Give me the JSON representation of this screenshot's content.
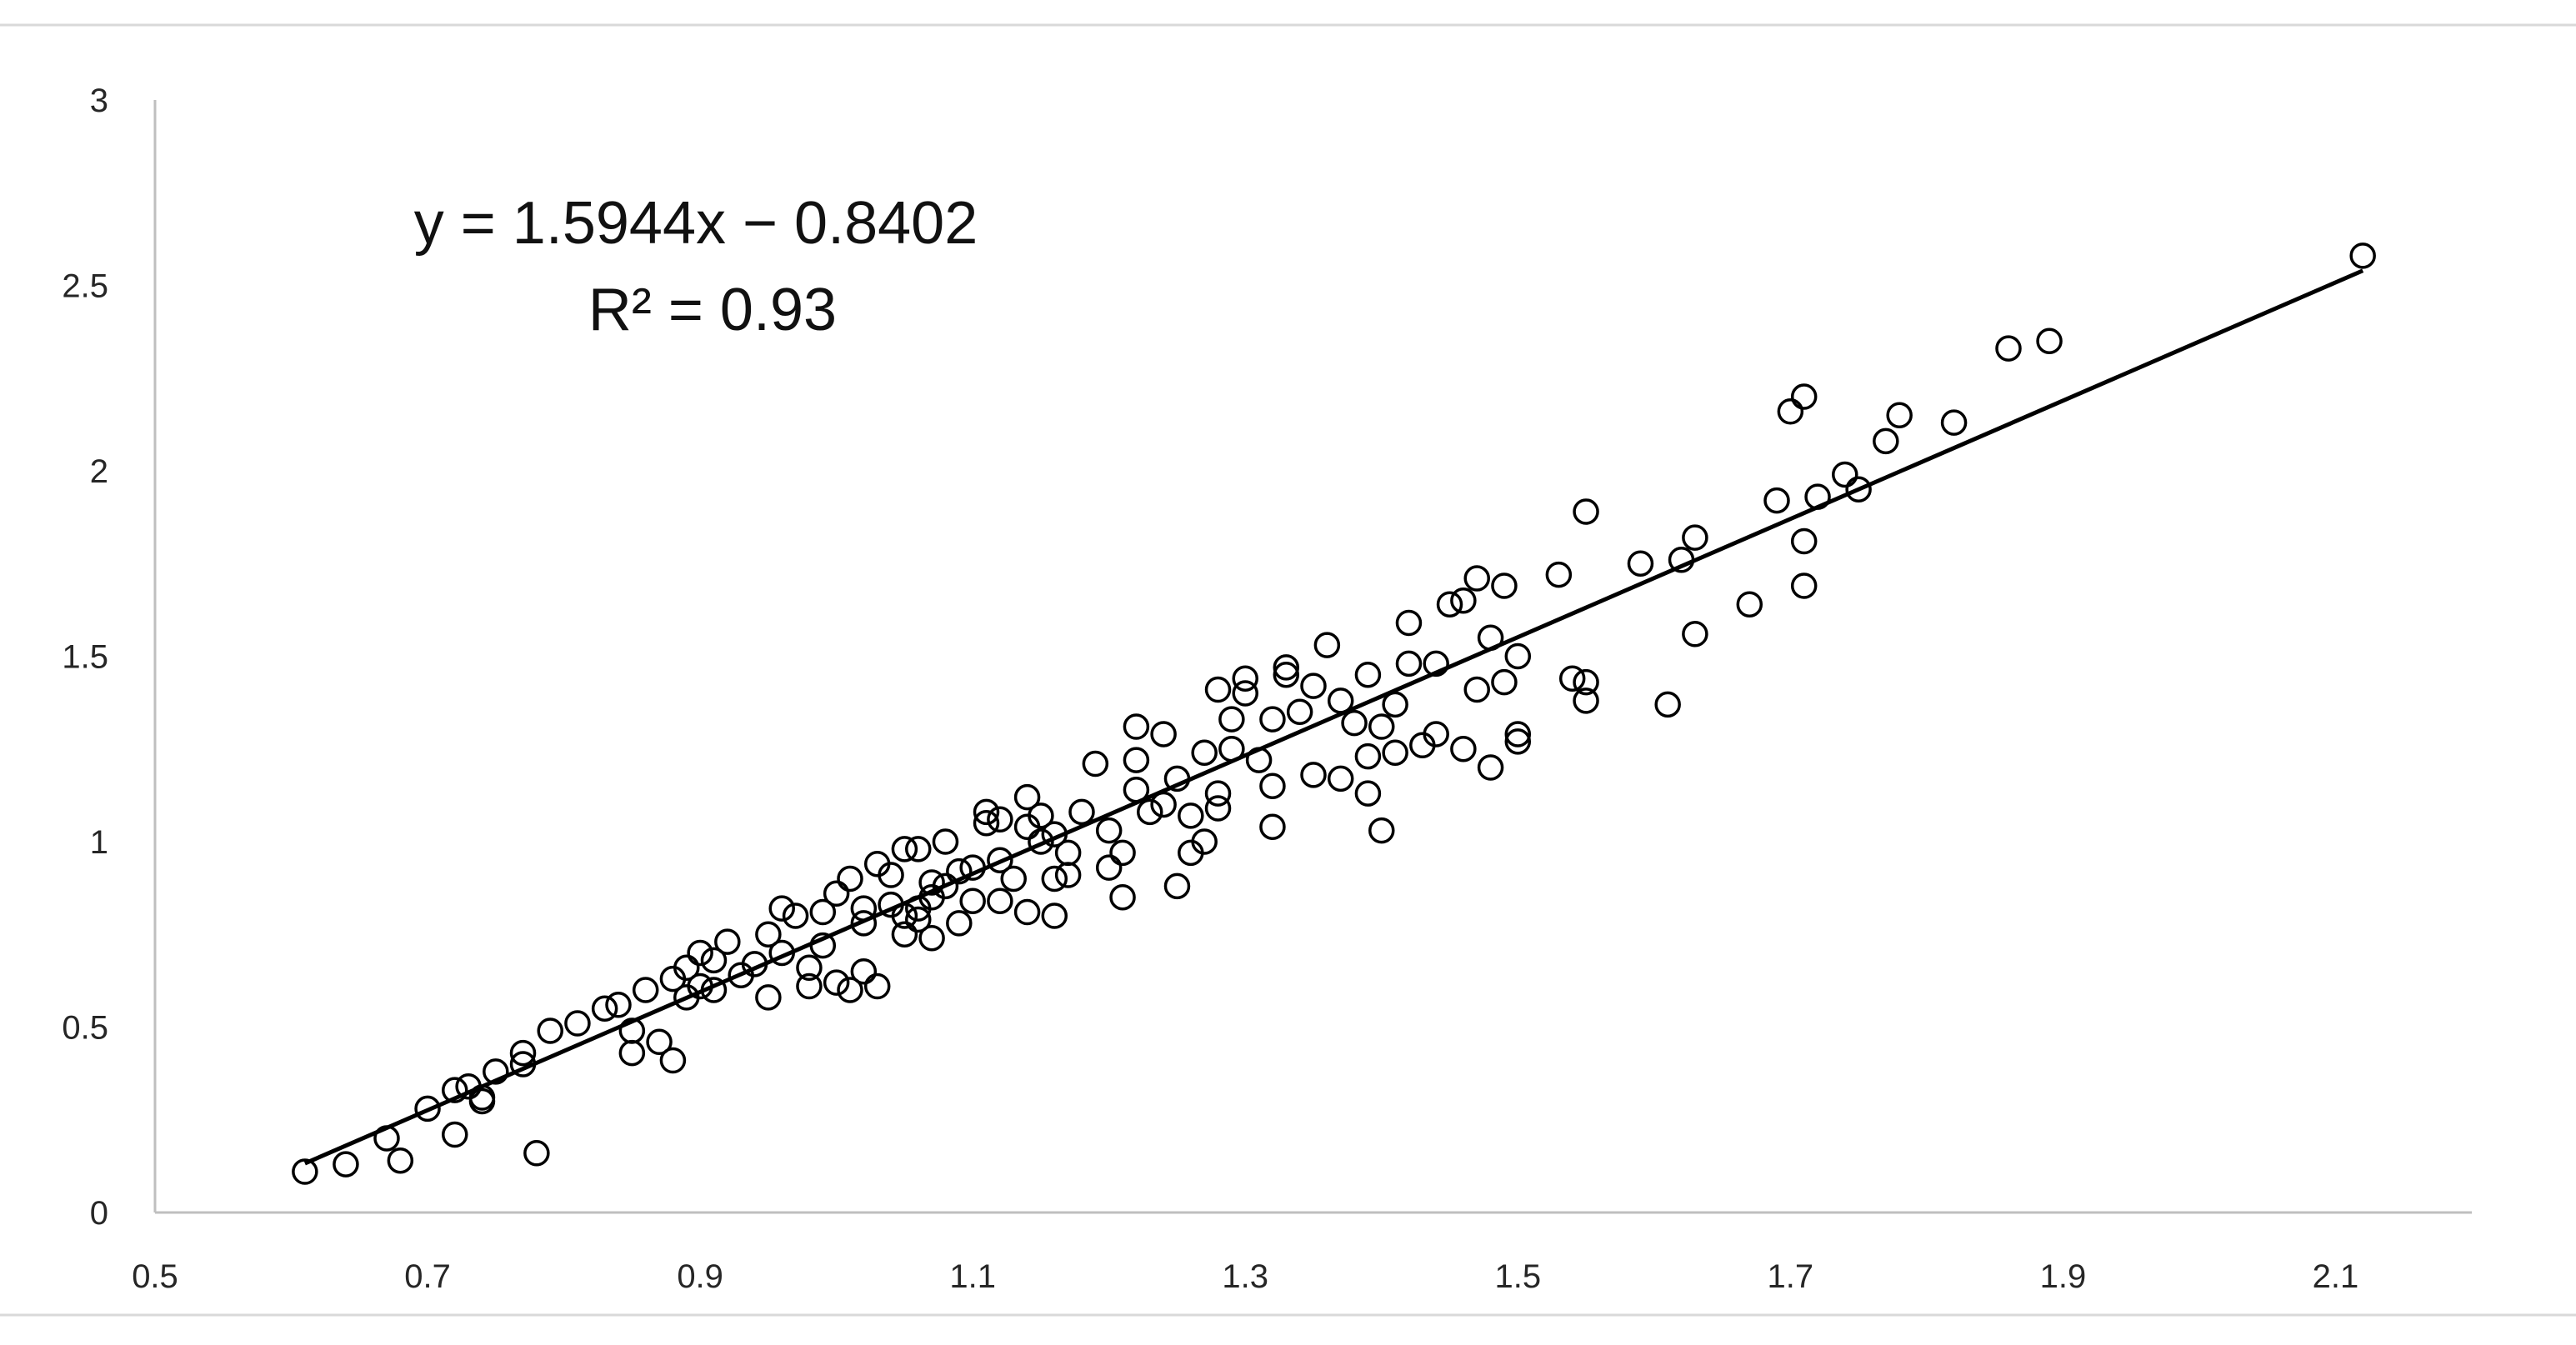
{
  "chart_data": {
    "type": "scatter",
    "title": "",
    "xlabel": "",
    "ylabel": "",
    "xlim": [
      0.5,
      2.2
    ],
    "ylim": [
      0,
      3
    ],
    "x_ticks": [
      "0.5",
      "0.7",
      "0.9",
      "1.1",
      "1.3",
      "1.5",
      "1.7",
      "1.9",
      "2.1"
    ],
    "y_ticks": [
      "0",
      "0.5",
      "1",
      "1.5",
      "2",
      "2.5",
      "3"
    ],
    "grid": false,
    "legend": "none",
    "annotations": [
      "y = 1.5944x − 0.8402",
      "R² = 0.93"
    ],
    "trendline": {
      "slope": 1.5944,
      "intercept": -0.8402,
      "x_range": [
        0.61,
        2.12
      ]
    },
    "marker": "open-circle",
    "colors": {
      "marker": "#000000",
      "trendline": "#000000",
      "axis": "#bfbfbf",
      "text": "#262626",
      "frame": "#d9d9d9"
    },
    "points": [
      [
        0.61,
        0.11
      ],
      [
        0.64,
        0.13
      ],
      [
        0.67,
        0.2
      ],
      [
        0.68,
        0.14
      ],
      [
        0.7,
        0.28
      ],
      [
        0.72,
        0.33
      ],
      [
        0.72,
        0.21
      ],
      [
        0.73,
        0.34
      ],
      [
        0.74,
        0.31
      ],
      [
        0.74,
        0.3
      ],
      [
        0.75,
        0.38
      ],
      [
        0.77,
        0.43
      ],
      [
        0.77,
        0.4
      ],
      [
        0.78,
        0.16
      ],
      [
        0.79,
        0.49
      ],
      [
        0.81,
        0.51
      ],
      [
        0.83,
        0.55
      ],
      [
        0.84,
        0.56
      ],
      [
        0.85,
        0.43
      ],
      [
        0.85,
        0.49
      ],
      [
        0.86,
        0.6
      ],
      [
        0.87,
        0.46
      ],
      [
        0.88,
        0.41
      ],
      [
        0.88,
        0.63
      ],
      [
        0.89,
        0.66
      ],
      [
        0.89,
        0.58
      ],
      [
        0.9,
        0.61
      ],
      [
        0.9,
        0.7
      ],
      [
        0.91,
        0.68
      ],
      [
        0.91,
        0.6
      ],
      [
        0.92,
        0.73
      ],
      [
        0.93,
        0.64
      ],
      [
        0.94,
        0.67
      ],
      [
        0.95,
        0.75
      ],
      [
        0.95,
        0.58
      ],
      [
        0.96,
        0.7
      ],
      [
        0.96,
        0.82
      ],
      [
        0.97,
        0.8
      ],
      [
        0.98,
        0.66
      ],
      [
        0.98,
        0.61
      ],
      [
        0.99,
        0.81
      ],
      [
        0.99,
        0.72
      ],
      [
        1.0,
        0.86
      ],
      [
        1.0,
        0.62
      ],
      [
        1.01,
        0.6
      ],
      [
        1.01,
        0.9
      ],
      [
        1.02,
        0.82
      ],
      [
        1.02,
        0.65
      ],
      [
        1.02,
        0.78
      ],
      [
        1.03,
        0.94
      ],
      [
        1.03,
        0.61
      ],
      [
        1.04,
        0.91
      ],
      [
        1.04,
        0.83
      ],
      [
        1.05,
        0.98
      ],
      [
        1.05,
        0.75
      ],
      [
        1.05,
        0.8
      ],
      [
        1.06,
        0.79
      ],
      [
        1.06,
        0.98
      ],
      [
        1.06,
        0.82
      ],
      [
        1.07,
        0.74
      ],
      [
        1.07,
        0.85
      ],
      [
        1.07,
        0.89
      ],
      [
        1.08,
        0.88
      ],
      [
        1.08,
        1.0
      ],
      [
        1.09,
        0.92
      ],
      [
        1.09,
        0.78
      ],
      [
        1.1,
        0.84
      ],
      [
        1.1,
        0.93
      ],
      [
        1.11,
        1.05
      ],
      [
        1.11,
        1.08
      ],
      [
        1.12,
        0.84
      ],
      [
        1.12,
        0.95
      ],
      [
        1.12,
        1.06
      ],
      [
        1.13,
        0.9
      ],
      [
        1.14,
        1.04
      ],
      [
        1.14,
        0.81
      ],
      [
        1.14,
        1.12
      ],
      [
        1.15,
        1.07
      ],
      [
        1.15,
        1.0
      ],
      [
        1.16,
        1.02
      ],
      [
        1.16,
        0.8
      ],
      [
        1.16,
        0.9
      ],
      [
        1.17,
        0.97
      ],
      [
        1.17,
        0.91
      ],
      [
        1.18,
        1.08
      ],
      [
        1.19,
        1.21
      ],
      [
        1.2,
        1.03
      ],
      [
        1.2,
        0.93
      ],
      [
        1.21,
        0.97
      ],
      [
        1.21,
        0.85
      ],
      [
        1.22,
        1.14
      ],
      [
        1.22,
        1.22
      ],
      [
        1.22,
        1.31
      ],
      [
        1.23,
        1.08
      ],
      [
        1.24,
        1.29
      ],
      [
        1.24,
        1.1
      ],
      [
        1.25,
        1.17
      ],
      [
        1.25,
        0.88
      ],
      [
        1.26,
        0.97
      ],
      [
        1.26,
        1.07
      ],
      [
        1.27,
        1.0
      ],
      [
        1.27,
        1.24
      ],
      [
        1.28,
        1.13
      ],
      [
        1.28,
        1.09
      ],
      [
        1.28,
        1.41
      ],
      [
        1.29,
        1.33
      ],
      [
        1.29,
        1.25
      ],
      [
        1.3,
        1.44
      ],
      [
        1.3,
        1.4
      ],
      [
        1.31,
        1.22
      ],
      [
        1.32,
        1.04
      ],
      [
        1.32,
        1.33
      ],
      [
        1.32,
        1.15
      ],
      [
        1.33,
        1.47
      ],
      [
        1.33,
        1.45
      ],
      [
        1.34,
        1.35
      ],
      [
        1.35,
        1.42
      ],
      [
        1.35,
        1.18
      ],
      [
        1.36,
        1.53
      ],
      [
        1.37,
        1.38
      ],
      [
        1.37,
        1.17
      ],
      [
        1.38,
        1.32
      ],
      [
        1.39,
        1.45
      ],
      [
        1.39,
        1.13
      ],
      [
        1.39,
        1.23
      ],
      [
        1.4,
        1.31
      ],
      [
        1.4,
        1.03
      ],
      [
        1.41,
        1.37
      ],
      [
        1.41,
        1.24
      ],
      [
        1.42,
        1.48
      ],
      [
        1.42,
        1.59
      ],
      [
        1.43,
        1.26
      ],
      [
        1.44,
        1.48
      ],
      [
        1.44,
        1.29
      ],
      [
        1.45,
        1.64
      ],
      [
        1.46,
        1.25
      ],
      [
        1.46,
        1.65
      ],
      [
        1.47,
        1.41
      ],
      [
        1.47,
        1.71
      ],
      [
        1.48,
        1.2
      ],
      [
        1.48,
        1.55
      ],
      [
        1.49,
        1.43
      ],
      [
        1.49,
        1.69
      ],
      [
        1.5,
        1.5
      ],
      [
        1.5,
        1.27
      ],
      [
        1.5,
        1.29
      ],
      [
        1.53,
        1.72
      ],
      [
        1.54,
        1.44
      ],
      [
        1.55,
        1.43
      ],
      [
        1.55,
        1.89
      ],
      [
        1.55,
        1.38
      ],
      [
        1.59,
        1.75
      ],
      [
        1.61,
        1.37
      ],
      [
        1.62,
        1.76
      ],
      [
        1.63,
        1.82
      ],
      [
        1.63,
        1.56
      ],
      [
        1.67,
        1.64
      ],
      [
        1.69,
        1.92
      ],
      [
        1.7,
        2.16
      ],
      [
        1.71,
        2.2
      ],
      [
        1.71,
        1.81
      ],
      [
        1.71,
        1.69
      ],
      [
        1.72,
        1.93
      ],
      [
        1.74,
        1.99
      ],
      [
        1.75,
        1.95
      ],
      [
        1.77,
        2.08
      ],
      [
        1.78,
        2.15
      ],
      [
        1.82,
        2.13
      ],
      [
        1.86,
        2.33
      ],
      [
        1.89,
        2.35
      ],
      [
        2.12,
        2.58
      ]
    ]
  }
}
